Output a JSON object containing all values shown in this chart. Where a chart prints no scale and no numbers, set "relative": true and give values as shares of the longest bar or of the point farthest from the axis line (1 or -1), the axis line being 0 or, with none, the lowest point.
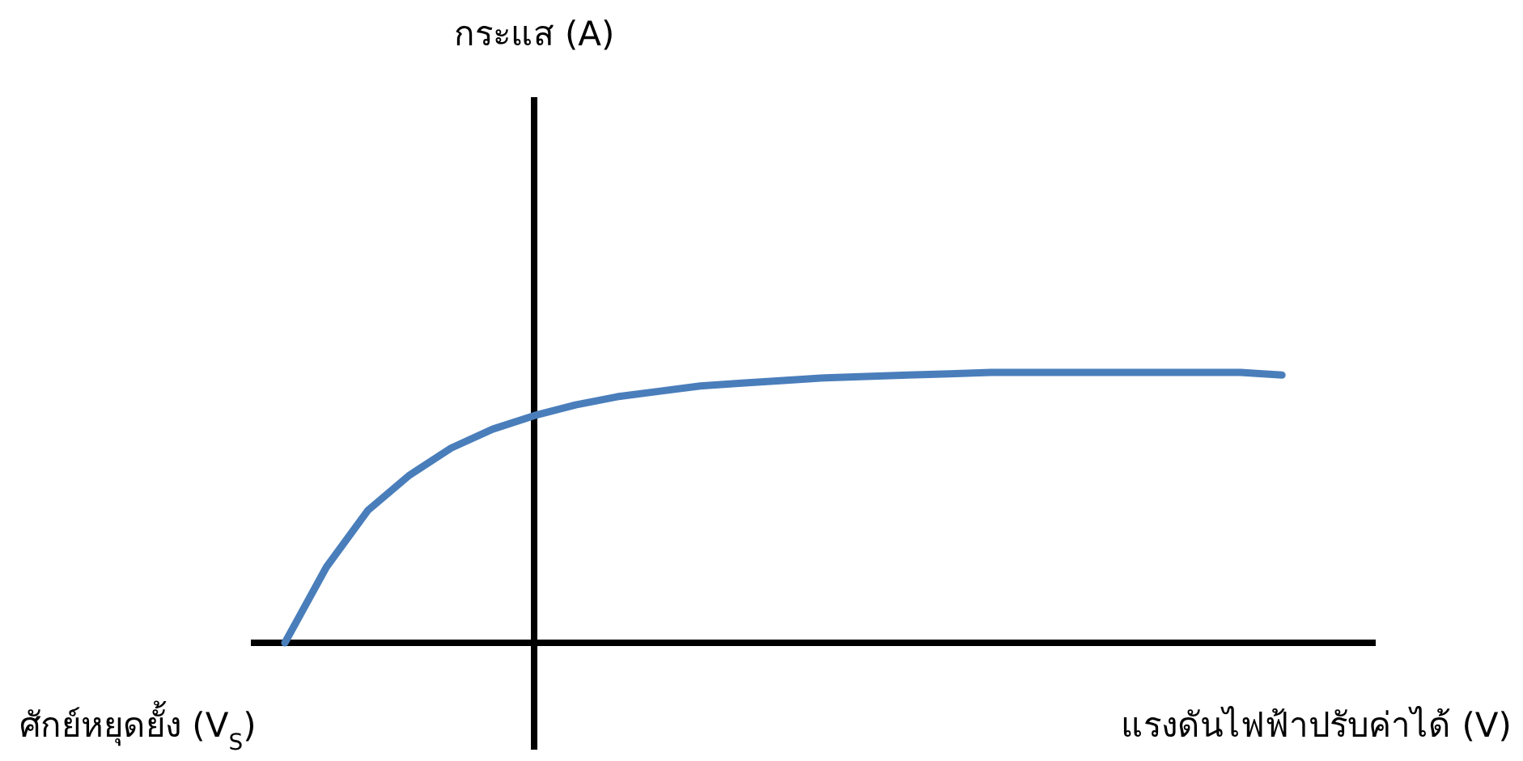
{
  "chart_data": {
    "type": "line",
    "relative": true,
    "xlabel": "แรงดันไฟฟ้าปรับค่าได้ (V)",
    "categories": [
      null,
      null,
      null,
      null,
      null,
      null,
      null,
      null,
      null,
      null,
      null,
      null,
      null,
      null,
      null,
      null,
      null,
      null,
      null,
      null,
      null,
      null,
      null,
      null,
      null
    ],
    "series": [
      {
        "color": "#4a7ebb",
        "values": [
          0,
          0.28,
          0.49,
          0.62,
          0.72,
          0.79,
          0.84,
          0.88,
          0.91,
          0.93,
          0.95,
          0.96,
          0.97,
          0.98,
          0.985,
          0.99,
          0.995,
          1,
          1,
          1,
          1,
          1,
          1,
          1,
          0.99
        ]
      }
    ],
    "annotations": [
      "ศักย์หยุดยั้ง (V$_{S}$)",
      "กระแส (A)"
    ],
    "marker": "none",
    "line_style": "solid"
  }
}
